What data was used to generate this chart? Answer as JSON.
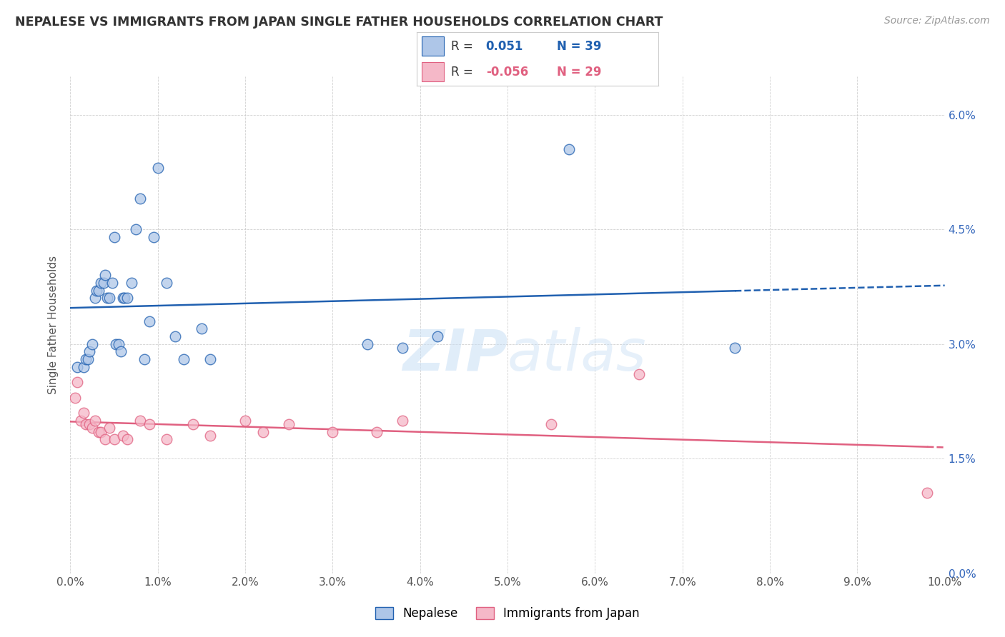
{
  "title": "NEPALESE VS IMMIGRANTS FROM JAPAN SINGLE FATHER HOUSEHOLDS CORRELATION CHART",
  "source": "Source: ZipAtlas.com",
  "ylabel_label": "Single Father Households",
  "legend_labels": [
    "Nepalese",
    "Immigrants from Japan"
  ],
  "r_nepalese": "0.051",
  "n_nepalese": "39",
  "r_japan": "-0.056",
  "n_japan": "29",
  "nepalese_color": "#aec6e8",
  "japan_color": "#f5b8c8",
  "nepalese_line_color": "#2060b0",
  "japan_line_color": "#e06080",
  "watermark_color": "#c8dff5",
  "nepalese_x": [
    0.0008,
    0.0015,
    0.0018,
    0.002,
    0.0022,
    0.0025,
    0.0028,
    0.003,
    0.0032,
    0.0035,
    0.0038,
    0.004,
    0.0042,
    0.0045,
    0.0048,
    0.005,
    0.0052,
    0.0055,
    0.0058,
    0.006,
    0.0062,
    0.0065,
    0.007,
    0.0075,
    0.008,
    0.0085,
    0.009,
    0.0095,
    0.01,
    0.011,
    0.012,
    0.013,
    0.015,
    0.016,
    0.034,
    0.038,
    0.042,
    0.057,
    0.076
  ],
  "nepalese_y": [
    0.027,
    0.027,
    0.028,
    0.028,
    0.029,
    0.03,
    0.036,
    0.037,
    0.037,
    0.038,
    0.038,
    0.039,
    0.036,
    0.036,
    0.038,
    0.044,
    0.03,
    0.03,
    0.029,
    0.036,
    0.036,
    0.036,
    0.038,
    0.045,
    0.049,
    0.028,
    0.033,
    0.044,
    0.053,
    0.038,
    0.031,
    0.028,
    0.032,
    0.028,
    0.03,
    0.0295,
    0.031,
    0.0555,
    0.0295
  ],
  "japan_x": [
    0.0005,
    0.0008,
    0.0012,
    0.0015,
    0.0018,
    0.0022,
    0.0025,
    0.0028,
    0.0032,
    0.0035,
    0.004,
    0.0045,
    0.005,
    0.006,
    0.0065,
    0.008,
    0.009,
    0.011,
    0.014,
    0.016,
    0.02,
    0.022,
    0.025,
    0.03,
    0.035,
    0.038,
    0.055,
    0.065,
    0.098
  ],
  "japan_y": [
    0.023,
    0.025,
    0.02,
    0.021,
    0.0195,
    0.0195,
    0.019,
    0.02,
    0.0185,
    0.0185,
    0.0175,
    0.019,
    0.0175,
    0.018,
    0.0175,
    0.02,
    0.0195,
    0.0175,
    0.0195,
    0.018,
    0.02,
    0.0185,
    0.0195,
    0.0185,
    0.0185,
    0.02,
    0.0195,
    0.026,
    0.0105
  ],
  "xlim": [
    0.0,
    0.1
  ],
  "ylim": [
    0.0,
    0.065
  ]
}
